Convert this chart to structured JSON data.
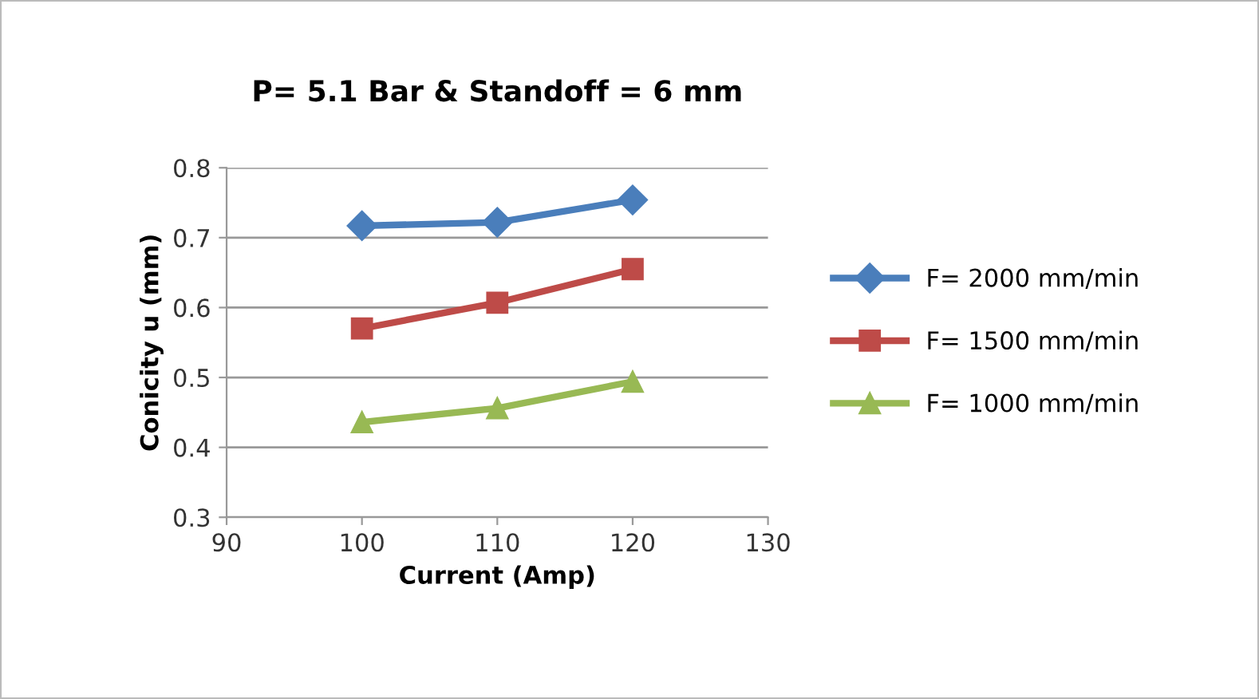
{
  "chart_data": {
    "type": "line",
    "title": "P= 5.1 Bar & Standoff = 6 mm",
    "xlabel": "Current (Amp)",
    "ylabel": "Conicity u (mm)",
    "x": [
      100,
      110,
      120
    ],
    "series": [
      {
        "name": "F= 2000 mm/min",
        "color": "#4a7ebb",
        "marker": "diamond",
        "values": [
          0.717,
          0.722,
          0.754
        ]
      },
      {
        "name": "F= 1500 mm/min",
        "color": "#be4b48",
        "marker": "square",
        "values": [
          0.57,
          0.607,
          0.655
        ]
      },
      {
        "name": "F= 1000 mm/min",
        "color": "#98b954",
        "marker": "triangle",
        "values": [
          0.436,
          0.456,
          0.494
        ]
      }
    ],
    "xlim": [
      90,
      130
    ],
    "xticks": [
      90,
      100,
      110,
      120,
      130
    ],
    "ylim": [
      0.3,
      0.8
    ],
    "yticks": [
      0.3,
      0.4,
      0.5,
      0.6,
      0.7,
      0.8
    ],
    "grid": "y",
    "legend": "right",
    "line_style": "solid"
  }
}
